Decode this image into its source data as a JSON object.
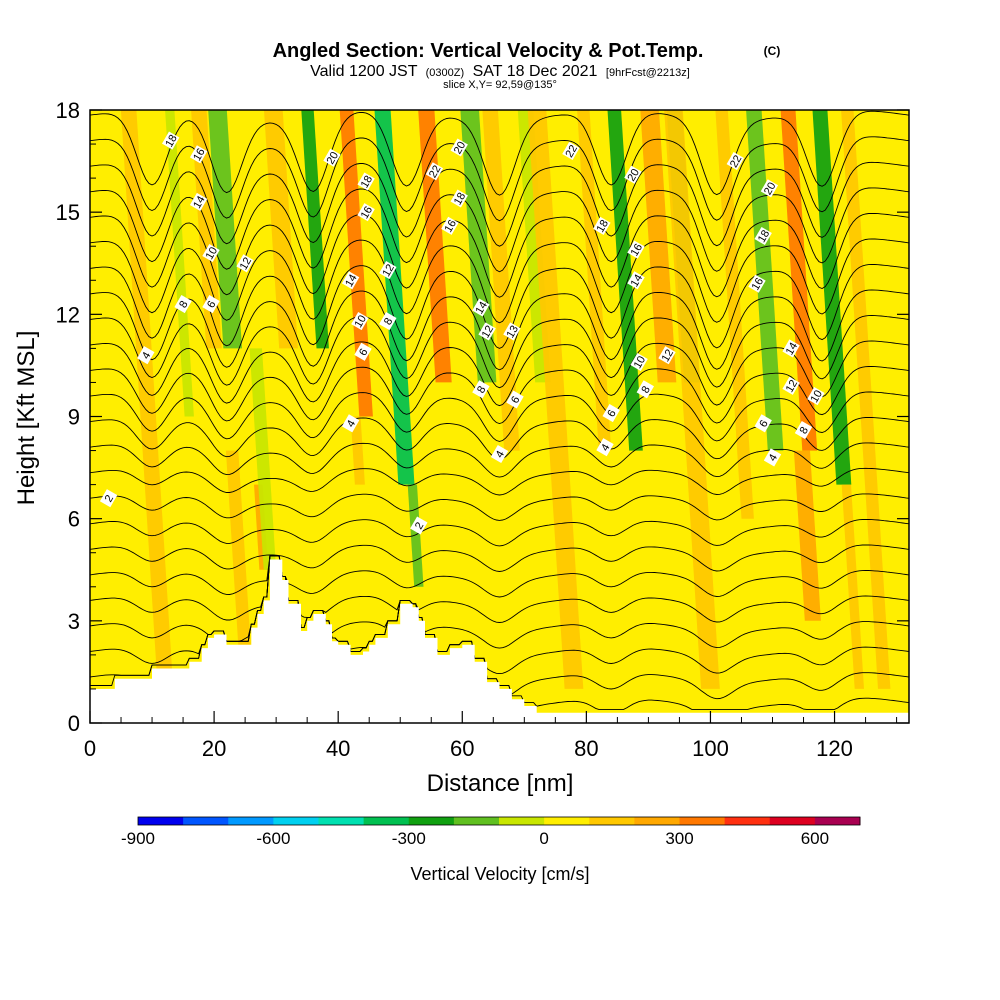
{
  "header": {
    "title": "Angled Section: Vertical Velocity & Pot.Temp.",
    "title_suffix": "(C)",
    "valid_prefix": "Valid 1200 JST",
    "valid_utc": "(0300Z)",
    "valid_date": "SAT 18 Dec 2021",
    "forecast": "[9hrFcst@2213z]",
    "slice": "slice X,Y= 92,59@135°"
  },
  "chart_data": {
    "type": "heatmap",
    "title": "Angled Section: Vertical Velocity & Pot.Temp.",
    "xlabel": "Distance [nm]",
    "ylabel": "Height [Kft MSL]",
    "xlim": [
      0,
      132
    ],
    "ylim": [
      0,
      18
    ],
    "x_ticks": [
      0,
      20,
      40,
      60,
      80,
      100,
      120
    ],
    "y_ticks": [
      0,
      3,
      6,
      9,
      12,
      15,
      18
    ],
    "x_tick_labels": [
      "0",
      "20",
      "40",
      "60",
      "80",
      "100",
      "120"
    ],
    "y_tick_labels": [
      "0",
      "3",
      "6",
      "9",
      "12",
      "15",
      "18"
    ],
    "background_value": 50,
    "vertical_velocity_features": [
      {
        "x": 1,
        "width": 2.5,
        "value": 80,
        "from_h": 1,
        "to_h": 18
      },
      {
        "x": 12,
        "width": 2.5,
        "value": 110,
        "from_h": 1.5,
        "to_h": 18
      },
      {
        "x": 16,
        "width": 1.5,
        "value": -80,
        "from_h": 9,
        "to_h": 18
      },
      {
        "x": 20,
        "width": 2.5,
        "value": 120,
        "from_h": 11,
        "to_h": 18
      },
      {
        "x": 23,
        "width": 3,
        "value": -150,
        "from_h": 11,
        "to_h": 18
      },
      {
        "x": 25,
        "width": 2,
        "value": 100,
        "from_h": 2,
        "to_h": 8
      },
      {
        "x": 28,
        "width": 1.4,
        "value": 280,
        "from_h": 4.5,
        "to_h": 7
      },
      {
        "x": 29,
        "width": 2,
        "value": -90,
        "from_h": 4.5,
        "to_h": 11
      },
      {
        "x": 32,
        "width": 3,
        "value": 160,
        "from_h": 11,
        "to_h": 18
      },
      {
        "x": 37.5,
        "width": 2,
        "value": -220,
        "from_h": 11,
        "to_h": 18
      },
      {
        "x": 44.5,
        "width": 2.2,
        "value": 350,
        "from_h": 9,
        "to_h": 18
      },
      {
        "x": 43.5,
        "width": 1.6,
        "value": 150,
        "from_h": 7,
        "to_h": 9
      },
      {
        "x": 51,
        "width": 2.6,
        "value": -320,
        "from_h": 7,
        "to_h": 18
      },
      {
        "x": 53,
        "width": 1.5,
        "value": -180,
        "from_h": 4,
        "to_h": 7
      },
      {
        "x": 57,
        "width": 2.6,
        "value": 300,
        "from_h": 10,
        "to_h": 18
      },
      {
        "x": 64,
        "width": 3,
        "value": -120,
        "from_h": 10,
        "to_h": 18
      },
      {
        "x": 68,
        "width": 2.5,
        "value": 150,
        "from_h": 8,
        "to_h": 18
      },
      {
        "x": 73,
        "width": 2.5,
        "value": -90,
        "from_h": 10,
        "to_h": 18
      },
      {
        "x": 78,
        "width": 3,
        "value": 140,
        "from_h": 1,
        "to_h": 18
      },
      {
        "x": 83,
        "width": 2,
        "value": 120,
        "from_h": 8,
        "to_h": 18
      },
      {
        "x": 88,
        "width": 2.2,
        "value": -210,
        "from_h": 8,
        "to_h": 18
      },
      {
        "x": 93,
        "width": 3,
        "value": 200,
        "from_h": 10,
        "to_h": 18
      },
      {
        "x": 97,
        "width": 2.5,
        "value": -140,
        "from_h": 10,
        "to_h": 18
      },
      {
        "x": 100,
        "width": 3,
        "value": 150,
        "from_h": 1,
        "to_h": 18
      },
      {
        "x": 106,
        "width": 2,
        "value": 120,
        "from_h": 6,
        "to_h": 18
      },
      {
        "x": 110.5,
        "width": 2.5,
        "value": -200,
        "from_h": 8,
        "to_h": 18
      },
      {
        "x": 116,
        "width": 2.4,
        "value": 380,
        "from_h": 8,
        "to_h": 18
      },
      {
        "x": 116.5,
        "width": 2.6,
        "value": 200,
        "from_h": 3,
        "to_h": 8
      },
      {
        "x": 121.5,
        "width": 2.4,
        "value": -270,
        "from_h": 7,
        "to_h": 18
      },
      {
        "x": 124,
        "width": 1.5,
        "value": 100,
        "from_h": 1,
        "to_h": 7
      },
      {
        "x": 128,
        "width": 2,
        "value": 140,
        "from_h": 1,
        "to_h": 18
      }
    ],
    "terrain": {
      "x": [
        0,
        4,
        8,
        10,
        14,
        16,
        18,
        19,
        20,
        22,
        24,
        26,
        27,
        28,
        29,
        30,
        31,
        32,
        34,
        35,
        36,
        37,
        38,
        39,
        40,
        42,
        44,
        45,
        46,
        48,
        50,
        52,
        53,
        54,
        56,
        58,
        60,
        62,
        64,
        66,
        68,
        70,
        72,
        80,
        100,
        120,
        132
      ],
      "h": [
        1.0,
        1.3,
        1.3,
        1.6,
        1.6,
        1.8,
        2.2,
        2.5,
        2.6,
        2.3,
        2.3,
        2.8,
        3.2,
        3.6,
        4.8,
        4.8,
        4.2,
        3.5,
        2.7,
        3.0,
        3.2,
        3.2,
        2.9,
        2.4,
        2.3,
        2.0,
        2.1,
        2.3,
        2.5,
        2.9,
        3.5,
        3.4,
        3.0,
        2.5,
        2.0,
        2.2,
        2.3,
        1.8,
        1.2,
        1.0,
        0.7,
        0.5,
        0.3,
        0.3,
        0.3,
        0.3,
        0.3
      ]
    },
    "potential_temperature_contours": {
      "levels": [
        0,
        2,
        4,
        6,
        8,
        10,
        12,
        14,
        16,
        18,
        20,
        22
      ],
      "labels": [
        {
          "text": "2",
          "x": 3,
          "h": 6.6
        },
        {
          "text": "2",
          "x": 53,
          "h": 5.8
        },
        {
          "text": "4",
          "x": 9,
          "h": 10.8
        },
        {
          "text": "4",
          "x": 42,
          "h": 8.8
        },
        {
          "text": "4",
          "x": 66,
          "h": 7.9
        },
        {
          "text": "4",
          "x": 83,
          "h": 8.1
        },
        {
          "text": "4",
          "x": 110,
          "h": 7.8
        },
        {
          "text": "6",
          "x": 19.5,
          "h": 12.3
        },
        {
          "text": "6",
          "x": 44,
          "h": 10.9
        },
        {
          "text": "6",
          "x": 68.5,
          "h": 9.5
        },
        {
          "text": "6",
          "x": 84,
          "h": 9.1
        },
        {
          "text": "6",
          "x": 108.5,
          "h": 8.8
        },
        {
          "text": "8",
          "x": 15,
          "h": 12.3
        },
        {
          "text": "8",
          "x": 48,
          "h": 11.8
        },
        {
          "text": "8",
          "x": 63,
          "h": 9.8
        },
        {
          "text": "8",
          "x": 89.5,
          "h": 9.8
        },
        {
          "text": "8",
          "x": 115,
          "h": 8.6
        },
        {
          "text": "10",
          "x": 19.5,
          "h": 13.8
        },
        {
          "text": "10",
          "x": 43.5,
          "h": 11.8
        },
        {
          "text": "10",
          "x": 88.5,
          "h": 10.6
        },
        {
          "text": "10",
          "x": 117,
          "h": 9.6
        },
        {
          "text": "12",
          "x": 25,
          "h": 13.5
        },
        {
          "text": "12",
          "x": 48,
          "h": 13.3
        },
        {
          "text": "12",
          "x": 64,
          "h": 11.5
        },
        {
          "text": "12",
          "x": 93,
          "h": 10.8
        },
        {
          "text": "12",
          "x": 113,
          "h": 9.9
        },
        {
          "text": "13",
          "x": 68,
          "h": 11.5
        },
        {
          "text": "14",
          "x": 17.5,
          "h": 15.3
        },
        {
          "text": "14",
          "x": 42,
          "h": 13.0
        },
        {
          "text": "14",
          "x": 63,
          "h": 12.2
        },
        {
          "text": "14",
          "x": 88,
          "h": 13.0
        },
        {
          "text": "14",
          "x": 113,
          "h": 11.0
        },
        {
          "text": "16",
          "x": 17.5,
          "h": 16.7
        },
        {
          "text": "16",
          "x": 44.5,
          "h": 15.0
        },
        {
          "text": "16",
          "x": 58,
          "h": 14.6
        },
        {
          "text": "16",
          "x": 88,
          "h": 13.9
        },
        {
          "text": "16",
          "x": 107.5,
          "h": 12.9
        },
        {
          "text": "18",
          "x": 13,
          "h": 17.1
        },
        {
          "text": "18",
          "x": 44.5,
          "h": 15.9
        },
        {
          "text": "18",
          "x": 59.5,
          "h": 15.4
        },
        {
          "text": "18",
          "x": 108.5,
          "h": 14.3
        },
        {
          "text": "18",
          "x": 82.5,
          "h": 14.6
        },
        {
          "text": "20",
          "x": 39,
          "h": 16.6
        },
        {
          "text": "20",
          "x": 59.5,
          "h": 16.9
        },
        {
          "text": "20",
          "x": 87.5,
          "h": 16.1
        },
        {
          "text": "20",
          "x": 109.5,
          "h": 15.7
        },
        {
          "text": "22",
          "x": 55.5,
          "h": 16.2
        },
        {
          "text": "22",
          "x": 77.5,
          "h": 16.8
        },
        {
          "text": "22",
          "x": 104,
          "h": 16.5
        }
      ]
    },
    "colorbar": {
      "label": "Vertical Velocity [cm/s]",
      "tick_values": [
        -900,
        -600,
        -300,
        0,
        300,
        600
      ],
      "tick_labels": [
        "-900",
        "-600",
        "-300",
        "0",
        "300",
        "600"
      ],
      "range": [
        -900,
        700
      ],
      "step": 100,
      "colors": [
        "#0000ee",
        "#0055ff",
        "#0099ff",
        "#00d0f0",
        "#00e0b0",
        "#00c050",
        "#10a010",
        "#60c020",
        "#c8e600",
        "#ffee00",
        "#ffc800",
        "#ffa800",
        "#ff7800",
        "#ff3010",
        "#dd0020",
        "#a80050"
      ]
    }
  }
}
